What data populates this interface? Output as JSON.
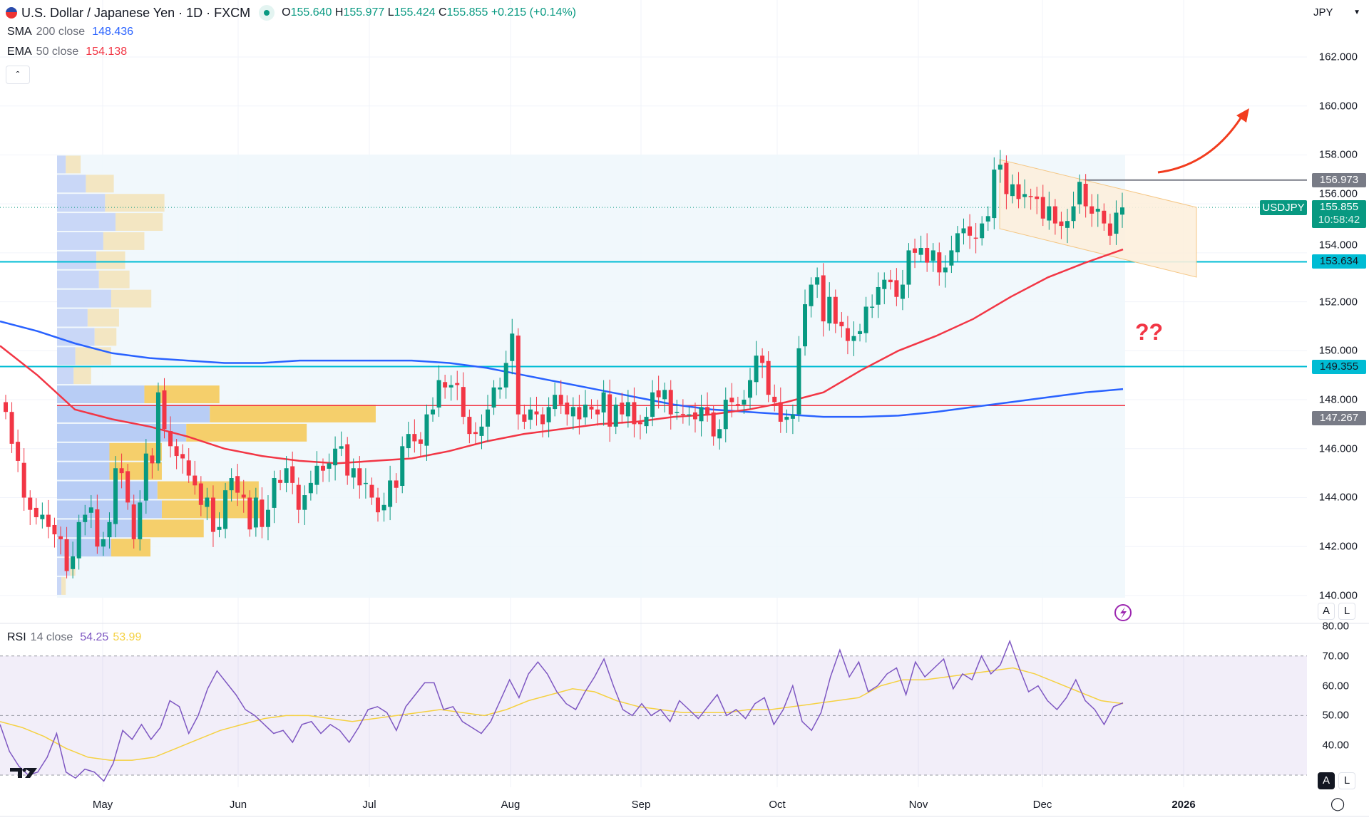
{
  "header": {
    "symbol_title": "U.S. Dollar / Japanese Yen · 1D · FXCM",
    "ohlc": {
      "o_label": "O",
      "o": "155.640",
      "h_label": "H",
      "h": "155.977",
      "l_label": "L",
      "l": "155.424",
      "c_label": "C",
      "c": "155.855",
      "change": "+0.215 (+0.14%)"
    },
    "currency_select": "JPY",
    "collapse_icon": "chevron-up-icon"
  },
  "indicators": {
    "sma": {
      "name": "SMA",
      "params": "200 close",
      "value": "148.436",
      "color": "#2962ff"
    },
    "ema": {
      "name": "EMA",
      "params": "50 close",
      "value": "154.138",
      "color": "#f23645"
    },
    "rsi": {
      "name": "RSI",
      "params": "14 close",
      "value": "54.25",
      "ma_value": "53.99",
      "color": "#7e57c2",
      "ma_color": "#f5d142"
    }
  },
  "price_axis": {
    "ticks": [
      "162.000",
      "160.000",
      "158.000",
      "156.000",
      "154.000",
      "152.000",
      "150.000",
      "148.000",
      "146.000",
      "144.000",
      "142.000",
      "140.000"
    ],
    "tags": {
      "resistance": "156.973",
      "symbol": "USDJPY",
      "last_price": "155.855",
      "countdown": "10:58:42",
      "support_1": "153.634",
      "support_2": "149.355",
      "level": "147.267"
    }
  },
  "rsi_axis": {
    "ticks": [
      "80.00",
      "70.00",
      "60.00",
      "50.00",
      "40.00"
    ]
  },
  "time_axis": {
    "labels": [
      "May",
      "Jun",
      "Jul",
      "Aug",
      "Sep",
      "Oct",
      "Nov",
      "Dec",
      "2026"
    ]
  },
  "buttons": {
    "auto": "A",
    "log": "L"
  },
  "annotation": {
    "question": "??"
  },
  "colors": {
    "up": "#089981",
    "down": "#f23645",
    "hline": "#00bcd4",
    "channel": "#f5c27a",
    "arrow": "#f23c1e"
  },
  "chart_data": {
    "type": "candlestick",
    "ylim": [
      140,
      163
    ],
    "closes": [
      147.5,
      146.2,
      145.5,
      144.0,
      143.5,
      143.2,
      143.3,
      142.8,
      142.5,
      142.3,
      141.0,
      141.6,
      143.0,
      143.3,
      143.6,
      142.0,
      142.3,
      143.0,
      145.2,
      145.0,
      143.8,
      142.3,
      143.8,
      145.8,
      145.4,
      148.3,
      146.8,
      146.1,
      145.7,
      145.6,
      144.9,
      144.5,
      143.7,
      144.0,
      142.6,
      142.8,
      144.3,
      144.8,
      144.2,
      144.0,
      142.7,
      144.0,
      142.8,
      143.5,
      144.8,
      144.6,
      145.2,
      144.6,
      143.5,
      144.1,
      144.6,
      145.3,
      145.1,
      145.4,
      146.0,
      146.1,
      144.9,
      145.2,
      144.5,
      144.6,
      144.0,
      143.4,
      143.7,
      144.7,
      144.4,
      146.1,
      146.6,
      146.3,
      146.2,
      147.4,
      147.6,
      148.8,
      148.5,
      148.6,
      148.6,
      147.3,
      146.6,
      146.6,
      146.9,
      147.6,
      148.5,
      148.5,
      149.5,
      150.7,
      147.4,
      147.1,
      147.6,
      147.4,
      147.0,
      147.7,
      148.2,
      147.8,
      147.4,
      147.7,
      147.2,
      147.8,
      147.6,
      147.4,
      148.3,
      146.9,
      147.8,
      147.4,
      147.9,
      147.0,
      147.0,
      147.3,
      148.3,
      148.1,
      148.4,
      147.4,
      147.5,
      147.4,
      147.4,
      147.2,
      147.7,
      147.4,
      146.5,
      146.8,
      148.0,
      147.9,
      147.8,
      148.0,
      148.8,
      149.8,
      149.5,
      148.2,
      147.9,
      147.1,
      147.3,
      147.4,
      150.1,
      151.9,
      152.7,
      153.0,
      151.2,
      152.2,
      151.1,
      151.0,
      150.4,
      150.6,
      150.8,
      151.8,
      151.8,
      152.6,
      152.9,
      152.8,
      152.2,
      152.7,
      154.1,
      154.0,
      154.2,
      153.6,
      154.1,
      153.2,
      153.4,
      154.1,
      154.8,
      155.0,
      154.7,
      154.6,
      155.2,
      155.5,
      157.4,
      157.6,
      156.4,
      156.8,
      156.2,
      156.4,
      156.3,
      156.2,
      155.4,
      155.9,
      155.2,
      155.1,
      155.3,
      155.9,
      156.9,
      155.9,
      155.6,
      155.8,
      155.2,
      154.7,
      155.64,
      155.855
    ],
    "sma200": [
      151.2,
      150.8,
      150.3,
      149.9,
      149.7,
      149.6,
      149.5,
      149.5,
      149.6,
      149.6,
      149.6,
      149.6,
      149.5,
      149.3,
      149.0,
      148.7,
      148.4,
      148.1,
      147.8,
      147.6,
      147.5,
      147.4,
      147.3,
      147.3,
      147.35,
      147.5,
      147.7,
      147.9,
      148.1,
      148.3,
      148.436
    ],
    "ema50": [
      150.2,
      149.0,
      147.6,
      147.2,
      146.9,
      146.5,
      146.0,
      145.7,
      145.5,
      145.4,
      145.5,
      145.6,
      145.9,
      146.3,
      146.6,
      146.8,
      147.0,
      147.1,
      147.3,
      147.4,
      147.6,
      147.9,
      148.3,
      149.2,
      150.0,
      150.6,
      151.3,
      152.2,
      153.0,
      153.6,
      154.138
    ],
    "volume_profile": {
      "price_range": [
        140,
        158
      ],
      "rows_up": [
        10,
        33,
        55,
        67,
        53,
        45,
        48,
        62,
        35,
        43,
        21,
        19,
        100,
        175,
        148,
        60,
        60,
        115,
        120,
        97,
        62,
        15,
        5
      ],
      "rows_down": [
        17,
        32,
        68,
        54,
        47,
        33,
        35,
        46,
        36,
        25,
        41,
        20,
        86,
        190,
        138,
        60,
        60,
        116,
        115,
        71,
        45,
        6,
        5
      ],
      "value_area_rows": [
        12,
        20
      ],
      "poc_price": 147.76
    },
    "hlines": [
      156.973,
      153.634,
      149.355,
      147.267
    ],
    "rsi": [
      47,
      38,
      33,
      30,
      31,
      36,
      44,
      31,
      29,
      32,
      31,
      28,
      34,
      45,
      42,
      47,
      42,
      46,
      55,
      53,
      44,
      50,
      59,
      65,
      61,
      57,
      52,
      50,
      47,
      44,
      45,
      41,
      47,
      48,
      44,
      47,
      45,
      41,
      46,
      52,
      53,
      51,
      45,
      53,
      57,
      61,
      61,
      52,
      53,
      48,
      46,
      44,
      48,
      55,
      62,
      56,
      64,
      68,
      64,
      58,
      54,
      52,
      58,
      63,
      69,
      60,
      52,
      50,
      54,
      50,
      52,
      48,
      55,
      52,
      49,
      53,
      57,
      50,
      52,
      49,
      54,
      56,
      47,
      52,
      60,
      48,
      45,
      51,
      63,
      72,
      63,
      68,
      58,
      60,
      64,
      66,
      57,
      68,
      63,
      66,
      69,
      59,
      64,
      62,
      70,
      64,
      67,
      75,
      66,
      58,
      60,
      55,
      52,
      56,
      62,
      55,
      52,
      47,
      53,
      54.25
    ],
    "rsi_ma": [
      48,
      46,
      43,
      39,
      36,
      35,
      35,
      36,
      39,
      42,
      45,
      47,
      49,
      50,
      50,
      49,
      48,
      49,
      50,
      51,
      52,
      51,
      50,
      52,
      55,
      57,
      59,
      58,
      55,
      53,
      52,
      51,
      51,
      51,
      52,
      52,
      53,
      54,
      55,
      56,
      60,
      62,
      62,
      63,
      64,
      65,
      66,
      64,
      61,
      58,
      55,
      53.99
    ],
    "rsi_levels": [
      70,
      50,
      30
    ],
    "rsi_ylim": [
      25,
      82
    ]
  }
}
